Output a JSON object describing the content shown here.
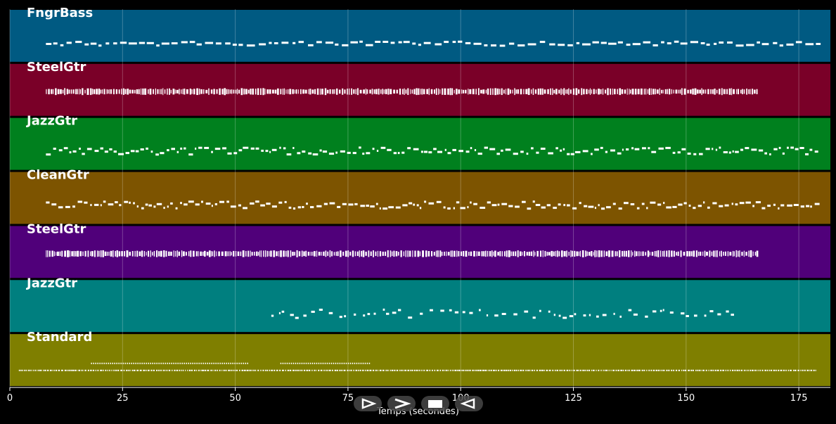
{
  "chart_data": {
    "type": "piano-roll",
    "xlabel": "Temps (secondes)",
    "xlim": [
      0,
      182
    ],
    "xticks": [
      0,
      25,
      50,
      75,
      100,
      125,
      150,
      175
    ],
    "grid": true,
    "tracks": [
      {
        "name": "FngrBass",
        "color": "#005a82",
        "notes_start": 8,
        "notes_end": 180,
        "style": "bass"
      },
      {
        "name": "SteelGtr",
        "color": "#7a0028",
        "notes_start": 8,
        "notes_end": 166,
        "style": "dense"
      },
      {
        "name": "JazzGtr",
        "color": "#00801e",
        "notes_start": 8,
        "notes_end": 179,
        "style": "melody"
      },
      {
        "name": "CleanGtr",
        "color": "#7d5400",
        "notes_start": 8,
        "notes_end": 179,
        "style": "melody"
      },
      {
        "name": "SteelGtr",
        "color": "#50007a",
        "notes_start": 8,
        "notes_end": 166,
        "style": "dense"
      },
      {
        "name": "JazzGtr",
        "color": "#007f7f",
        "notes_start": 58,
        "notes_end": 160,
        "style": "sparse"
      },
      {
        "name": "Standard",
        "color": "#7f7f00",
        "notes_start": 2,
        "notes_end": 179,
        "style": "drums"
      }
    ]
  },
  "controls": {
    "play_icon": "play-outline-icon",
    "forward_icon": "fast-forward-icon",
    "stop_icon": "stop-icon",
    "back_icon": "rewind-icon"
  }
}
